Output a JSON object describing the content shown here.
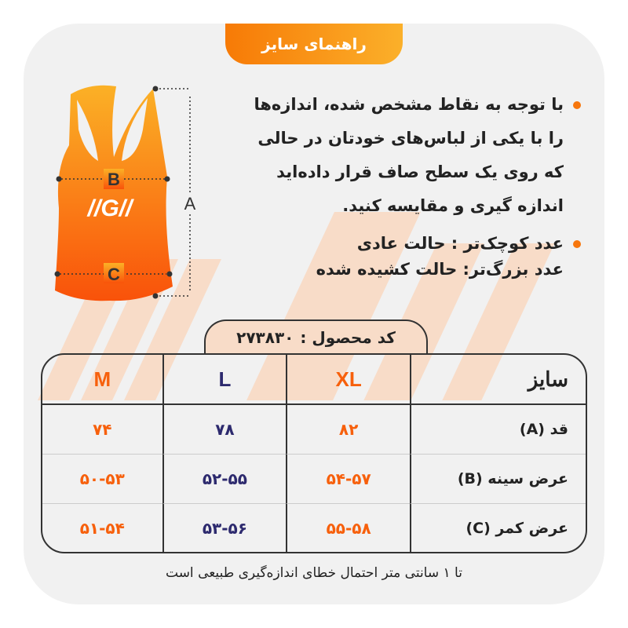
{
  "header": {
    "title": "راهنمای سایز"
  },
  "instructions": [
    {
      "text": "با توجه به نقاط مشخص شده، اندازه‌ها را با یکی از لباس‌های خودتان در حالی که روی یک سطح صاف قرار داده‌اید اندازه گیری و مقایسه کنید."
    },
    {
      "line1": "عدد کوچک‌تر : حالت عادی",
      "line2": "عدد بزرگ‌تر: حالت کشیده شده"
    }
  ],
  "diagram": {
    "labels": {
      "a": "A",
      "b": "B",
      "c": "C"
    }
  },
  "product": {
    "label": "کد محصول :",
    "code": "۲۷۳۸۳۰"
  },
  "table": {
    "header": {
      "label": "سایز",
      "sizes": [
        "XL",
        "L",
        "M"
      ]
    },
    "rows": [
      {
        "label": "قد (A)",
        "values": [
          "۸۲",
          "۷۸",
          "۷۴"
        ]
      },
      {
        "label": "عرض سینه (B)",
        "values": [
          "۵۴-۵۷",
          "۵۲-۵۵",
          "۵۰-۵۳"
        ]
      },
      {
        "label": "عرض کمر (C)",
        "values": [
          "۵۵-۵۸",
          "۵۳-۵۶",
          "۵۱-۵۴"
        ]
      }
    ]
  },
  "footer": {
    "note": "تا ۱ سانتی متر احتمال خطای اندازه‌گیری طبیعی است"
  },
  "colors": {
    "accent": "#f7600c",
    "secondary": "#2d2a6e",
    "background": "#f1f1f1",
    "stripe": "#f8dcc8"
  }
}
